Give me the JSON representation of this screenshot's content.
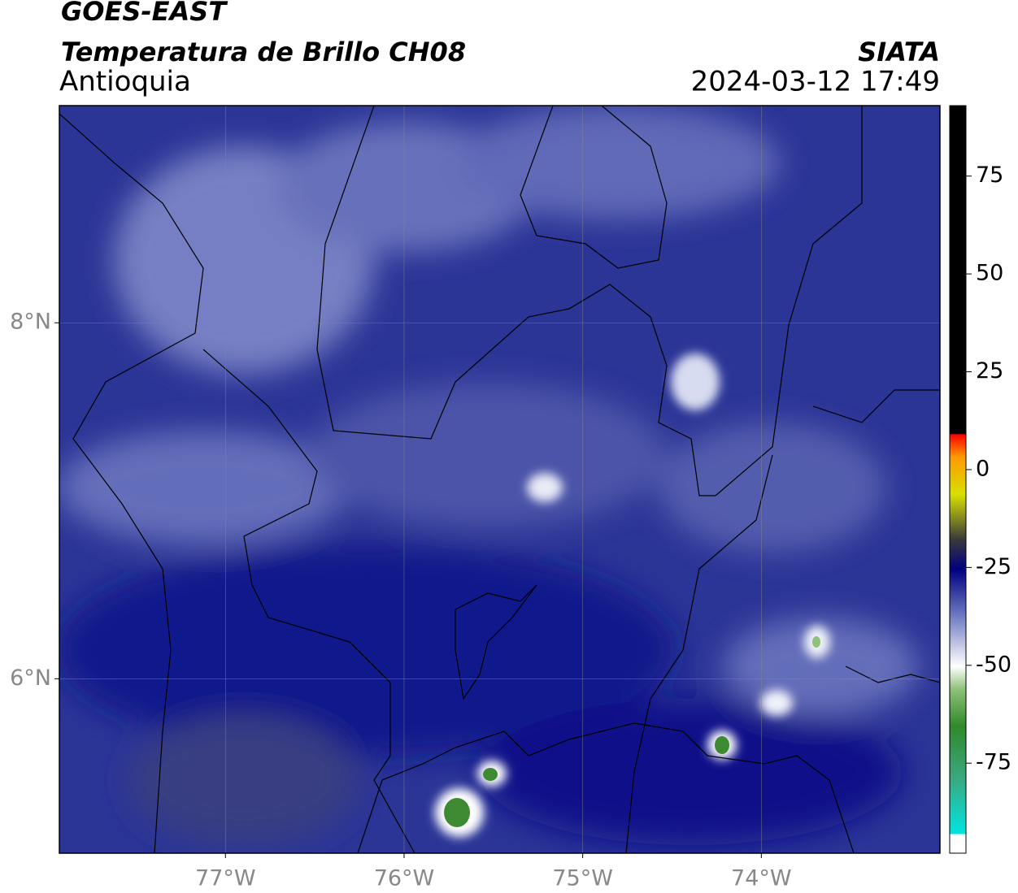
{
  "header": {
    "title": "GOES-EAST",
    "subtitle": "Temperatura de Brillo CH08",
    "region": "Antioquia",
    "source": "SIATA",
    "timestamp": "2024-03-12 17:49"
  },
  "map": {
    "xlim": [
      -77.93,
      -73.0
    ],
    "ylim": [
      5.02,
      9.22
    ],
    "xticks": [
      {
        "value": -77,
        "label": "77°W"
      },
      {
        "value": -76,
        "label": "76°W"
      },
      {
        "value": -75,
        "label": "75°W"
      },
      {
        "value": -74,
        "label": "74°W"
      }
    ],
    "yticks": [
      {
        "value": 8,
        "label": "8°N"
      },
      {
        "value": 6,
        "label": "6°N"
      }
    ],
    "grid": true
  },
  "colorbar": {
    "lim": [
      -98,
      93
    ],
    "ticks": [
      75,
      50,
      25,
      0,
      -25,
      -50,
      -75
    ]
  }
}
